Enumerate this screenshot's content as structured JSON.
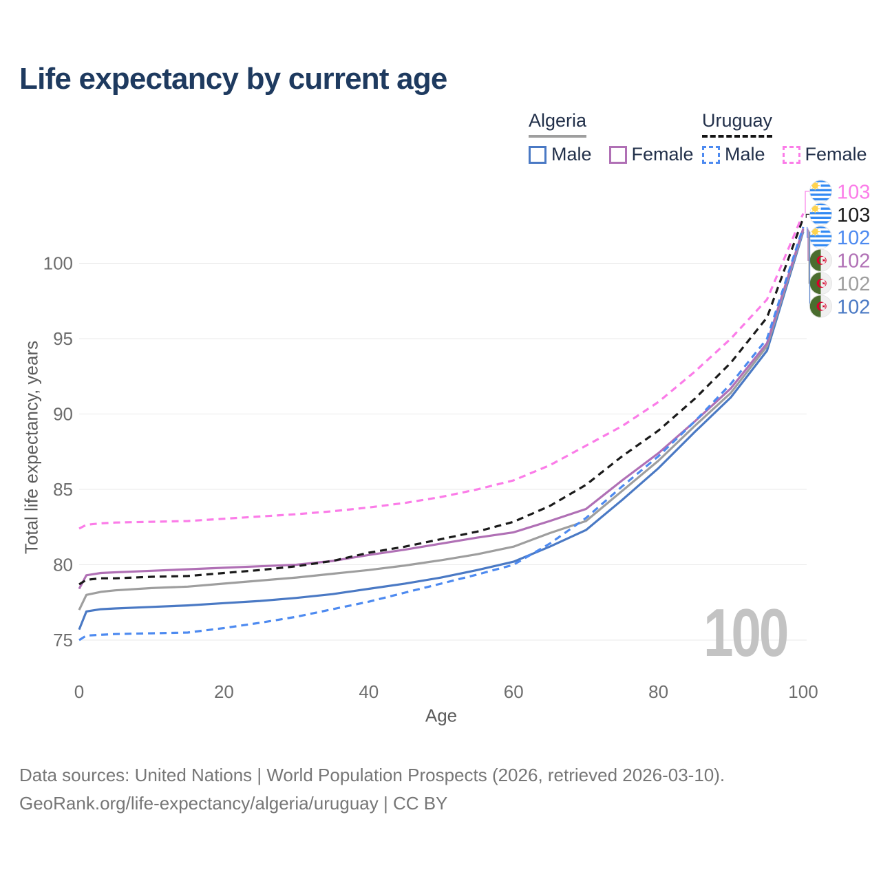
{
  "title": "Life expectancy by current age",
  "legend": {
    "groups": [
      {
        "country": "Algeria",
        "style": "solid",
        "underline_color": "#9e9e9e",
        "items": [
          {
            "label": "Male",
            "color": "#4a79c4",
            "dash": false
          },
          {
            "label": "Female",
            "color": "#b070b5",
            "dash": false
          }
        ]
      },
      {
        "country": "Uruguay",
        "style": "dashed",
        "underline_color": "#141414",
        "items": [
          {
            "label": "Male",
            "color": "#4d8af0",
            "dash": true
          },
          {
            "label": "Female",
            "color": "#fb7ce8",
            "dash": true
          }
        ]
      }
    ]
  },
  "chart_data": {
    "type": "line",
    "title": "Life expectancy by current age",
    "xlabel": "Age",
    "ylabel": "Total life expectancy, years",
    "xlim": [
      0,
      100
    ],
    "ylim": [
      74,
      104
    ],
    "x_ticks": [
      0,
      20,
      40,
      60,
      80,
      100
    ],
    "y_ticks": [
      75,
      80,
      85,
      90,
      95,
      100
    ],
    "grid": "horizontal",
    "legend_position": "top-right",
    "x": [
      0,
      1,
      3,
      5,
      10,
      15,
      20,
      25,
      30,
      35,
      40,
      45,
      50,
      55,
      60,
      65,
      70,
      75,
      80,
      85,
      90,
      95,
      100
    ],
    "series": [
      {
        "name": "Uruguay Female",
        "country": "Uruguay",
        "flag": "uruguay",
        "color": "#fb7ce8",
        "dash": true,
        "values": [
          82.4,
          82.65,
          82.75,
          82.8,
          82.85,
          82.9,
          83.05,
          83.2,
          83.35,
          83.55,
          83.8,
          84.1,
          84.5,
          85.0,
          85.6,
          86.6,
          87.9,
          89.2,
          90.8,
          92.8,
          95.0,
          97.6,
          103.3
        ],
        "end_label": "103"
      },
      {
        "name": "Uruguay Total",
        "country": "Uruguay",
        "flag": "uruguay",
        "color": "#1a1a1a",
        "dash": true,
        "values": [
          78.7,
          79.0,
          79.1,
          79.1,
          79.2,
          79.25,
          79.45,
          79.65,
          79.9,
          80.25,
          80.8,
          81.2,
          81.7,
          82.2,
          82.85,
          83.9,
          85.3,
          87.2,
          88.9,
          91.0,
          93.4,
          96.4,
          103.0
        ],
        "end_label": "103"
      },
      {
        "name": "Uruguay Male",
        "country": "Uruguay",
        "flag": "uruguay",
        "color": "#4d8af0",
        "dash": true,
        "values": [
          75.0,
          75.3,
          75.35,
          75.4,
          75.45,
          75.5,
          75.8,
          76.15,
          76.55,
          77.05,
          77.55,
          78.15,
          78.75,
          79.35,
          80.0,
          81.4,
          83.1,
          85.2,
          87.2,
          89.5,
          92.0,
          95.0,
          102.4
        ],
        "end_label": "102"
      },
      {
        "name": "Algeria Female",
        "country": "Algeria",
        "flag": "algeria",
        "color": "#b070b5",
        "dash": false,
        "values": [
          78.4,
          79.3,
          79.45,
          79.5,
          79.6,
          79.7,
          79.8,
          79.9,
          80.0,
          80.25,
          80.65,
          81.0,
          81.4,
          81.8,
          82.15,
          82.9,
          83.7,
          85.6,
          87.4,
          89.5,
          91.7,
          94.7,
          102.3
        ],
        "end_label": "102"
      },
      {
        "name": "Algeria Total",
        "country": "Algeria",
        "flag": "algeria",
        "color": "#9e9e9e",
        "dash": false,
        "values": [
          77.0,
          78.0,
          78.2,
          78.3,
          78.45,
          78.55,
          78.75,
          78.95,
          79.15,
          79.4,
          79.65,
          79.95,
          80.3,
          80.7,
          81.2,
          82.1,
          82.9,
          84.9,
          86.9,
          89.2,
          91.4,
          94.5,
          102.2
        ],
        "end_label": "102"
      },
      {
        "name": "Algeria Male",
        "country": "Algeria",
        "flag": "algeria",
        "color": "#4a79c4",
        "dash": false,
        "values": [
          75.7,
          76.9,
          77.05,
          77.1,
          77.2,
          77.3,
          77.45,
          77.6,
          77.8,
          78.05,
          78.4,
          78.75,
          79.15,
          79.65,
          80.2,
          81.2,
          82.3,
          84.3,
          86.4,
          88.8,
          91.1,
          94.2,
          102.1
        ],
        "end_label": "102"
      }
    ]
  },
  "annotations": {
    "age_indicator": "100"
  },
  "footer": {
    "line1": "Data sources: United Nations | World Population Prospects (2026, retrieved 2026-03-10).",
    "line2": "GeoRank.org/life-expectancy/algeria/uruguay | CC BY"
  }
}
